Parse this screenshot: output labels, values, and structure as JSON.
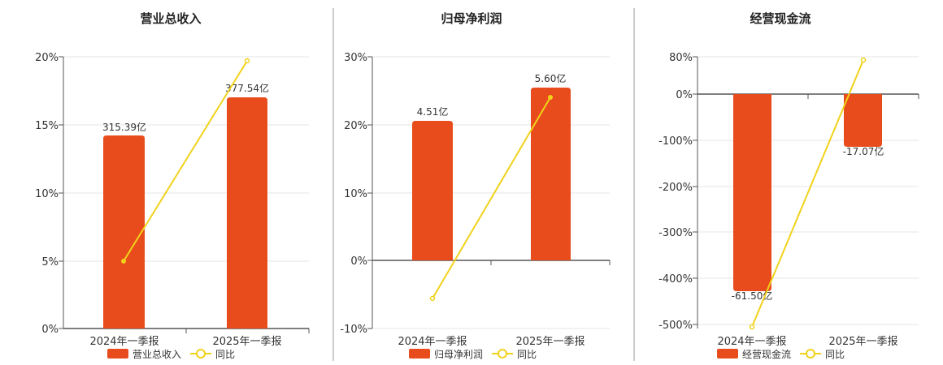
{
  "colors": {
    "bar": "#e84c1c",
    "line": "#f1d21b",
    "grid": "#e6e6e6",
    "axis": "#555555",
    "divider": "#999999"
  },
  "chart_data": [
    {
      "type": "bar",
      "title": "营业总收入",
      "categories": [
        "2024年一季报",
        "2025年一季报"
      ],
      "bar_values": [
        315.39,
        377.54
      ],
      "bar_labels": [
        "315.39亿",
        "377.54亿"
      ],
      "line_values": [
        5.0,
        19.7
      ],
      "yticks": [
        "20%",
        "15%",
        "10%",
        "5%",
        "0%"
      ],
      "ylim": [
        0,
        20
      ],
      "legend": {
        "bar": "营业总收入",
        "line": "同比",
        "placement": "bottom"
      },
      "grid": true
    },
    {
      "type": "bar",
      "title": "归母净利润",
      "categories": [
        "2024年一季报",
        "2025年一季报"
      ],
      "bar_values": [
        4.51,
        5.6
      ],
      "bar_labels": [
        "4.51亿",
        "5.60亿"
      ],
      "line_values": [
        -5.6,
        24.1
      ],
      "yticks": [
        "30%",
        "20%",
        "10%",
        "0%",
        "-10%"
      ],
      "ylim": [
        -10,
        30
      ],
      "legend": {
        "bar": "归母净利润",
        "line": "同比",
        "placement": "bottom"
      },
      "grid": true
    },
    {
      "type": "bar",
      "title": "经营现金流",
      "categories": [
        "2024年一季报",
        "2025年一季报"
      ],
      "bar_values": [
        -61.5,
        -17.07
      ],
      "bar_labels": [
        "-61.50亿",
        "-17.07亿"
      ],
      "line_values": [
        -506,
        75
      ],
      "yticks": [
        "80%",
        "0%",
        "-100%",
        "-200%",
        "-300%",
        "-400%",
        "-500%"
      ],
      "ylim": [
        -510,
        80
      ],
      "legend": {
        "bar": "经营现金流",
        "line": "同比",
        "placement": "bottom"
      },
      "grid": true
    }
  ]
}
